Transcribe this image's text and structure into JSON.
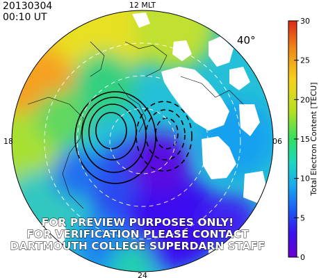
{
  "header": {
    "date": "20130304",
    "time": "00:10 UT"
  },
  "map": {
    "mlt_labels": {
      "top": "12 MLT",
      "bottom": "24",
      "left": "18",
      "right": "06"
    },
    "latitude_label": "40°",
    "watermark": [
      "FOR PREVIEW PURPOSES ONLY!",
      "FOR VERIFICATION PLEASE CONTACT",
      "DARTMOUTH COLLEGE SUPERDARN STAFF"
    ]
  },
  "colorbar": {
    "label": "Total Electron Content [TECU]",
    "min": 0,
    "max": 30,
    "ticks": [
      "0",
      "5",
      "10",
      "15",
      "20",
      "25",
      "30"
    ],
    "colors": [
      "#6a00d0",
      "#3a10f0",
      "#1a5cf6",
      "#18a8f0",
      "#1cd8c0",
      "#30e060",
      "#b8e020",
      "#f6d21c",
      "#f08a18",
      "#e02818"
    ]
  }
}
